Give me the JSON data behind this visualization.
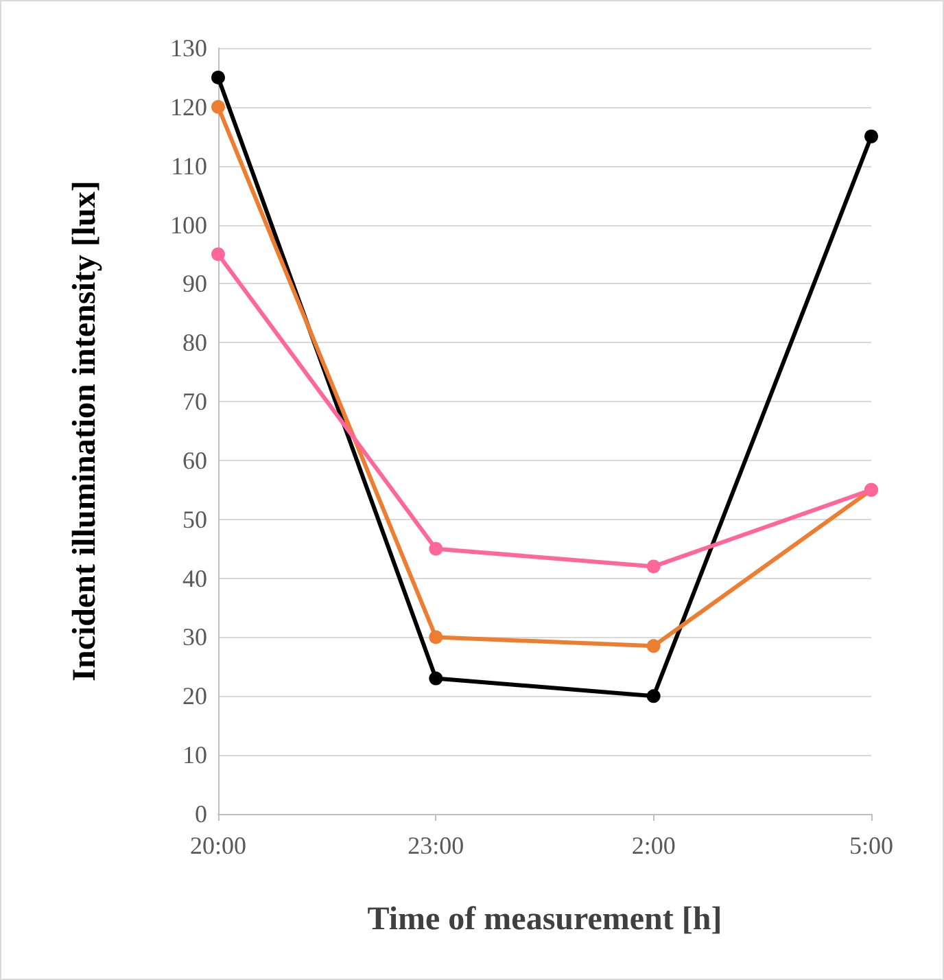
{
  "chart_data": {
    "type": "line",
    "xlabel": "Time of measurement [h]",
    "ylabel": "Incident illumination intensity [lux]",
    "categories": [
      "20:00",
      "23:00",
      "2:00",
      "5:00"
    ],
    "series": [
      {
        "color": "#000000",
        "values": [
          125,
          23,
          20,
          115
        ]
      },
      {
        "color": "#ed7d31",
        "values": [
          120,
          30,
          28.5,
          55
        ]
      },
      {
        "color": "#ff6699",
        "values": [
          95,
          45,
          42,
          55
        ]
      }
    ],
    "ylim": [
      0,
      130
    ],
    "yticks": [
      0,
      10,
      20,
      30,
      40,
      50,
      60,
      70,
      80,
      90,
      100,
      110,
      120,
      130
    ],
    "grid": "y",
    "marker": "circle",
    "line_style": "solid"
  }
}
